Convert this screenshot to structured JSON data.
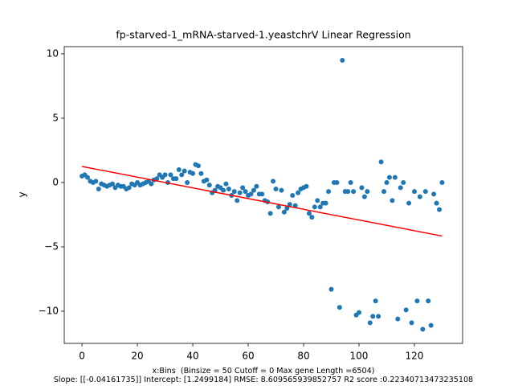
{
  "chart_data": {
    "type": "scatter",
    "title": "fp-starved-1_mRNA-starved-1.yeastchrV Linear Regression",
    "xlabel": [
      "x:Bins  (Binsize = 50 Cutoff = 0 Max gene Length =6504)",
      "Slope: [[-0.04161735]] Intercept: [1.2499184] RMSE: 8.609565939852757 R2 score :0.22340713473235108"
    ],
    "ylabel": "y",
    "xlim": [
      -6.4,
      137.4
    ],
    "ylim": [
      -12.5,
      10.56
    ],
    "xticks": [
      0,
      20,
      40,
      60,
      80,
      100,
      120
    ],
    "yticks": [
      {
        "value": -10,
        "label": "−10"
      },
      {
        "value": -5,
        "label": "−5"
      },
      0,
      5,
      10
    ],
    "series": [
      {
        "type": "scatter",
        "color": "#1f77b4",
        "x": [
          0,
          1,
          2,
          3,
          4,
          5,
          6,
          7,
          8,
          9,
          10,
          11,
          12,
          13,
          14,
          15,
          16,
          17,
          18,
          19,
          20,
          21,
          22,
          23,
          24,
          25,
          26,
          27,
          28,
          29,
          30,
          31,
          32,
          33,
          34,
          35,
          36,
          37,
          38,
          39,
          40,
          41,
          42,
          43,
          44,
          45,
          46,
          47,
          48,
          49,
          50,
          51,
          52,
          53,
          54,
          55,
          56,
          57,
          58,
          59,
          60,
          61,
          62,
          63,
          64,
          65,
          66,
          67,
          68,
          69,
          70,
          71,
          72,
          73,
          74,
          75,
          76,
          77,
          78,
          79,
          80,
          81,
          82,
          83,
          84,
          85,
          86,
          87,
          88,
          89,
          90,
          91,
          92,
          93,
          94,
          95,
          96,
          97,
          98,
          99,
          100,
          101,
          102,
          103,
          104,
          105,
          106,
          107,
          108,
          109,
          110,
          111,
          112,
          113,
          114,
          115,
          116,
          117,
          118,
          119,
          120,
          121,
          122,
          123,
          124,
          125,
          126,
          127,
          128,
          129,
          130
        ],
        "values": [
          0.5,
          0.6,
          0.4,
          0.1,
          0,
          0.1,
          -0.5,
          -0.1,
          -0.2,
          -0.3,
          -0.2,
          -0.1,
          -0.4,
          -0.2,
          -0.3,
          -0.3,
          -0.5,
          -0.4,
          -0.1,
          -0.2,
          0,
          -0.2,
          -0.1,
          0,
          0.1,
          -0.1,
          0.2,
          0.3,
          0.6,
          0.4,
          0.6,
          0,
          0.6,
          0.3,
          0.3,
          1.0,
          0.6,
          0.9,
          0,
          0.8,
          0.7,
          1.4,
          1.3,
          0.7,
          0.1,
          0.2,
          -0.2,
          -0.8,
          -0.6,
          -0.3,
          -0.4,
          -0.6,
          -0.1,
          -0.5,
          -1.0,
          -0.7,
          -1.4,
          -0.8,
          -0.4,
          -0.7,
          -1.0,
          -0.9,
          -0.6,
          -0.3,
          -0.9,
          -0.9,
          -1.4,
          -1.5,
          -2.4,
          0.1,
          -0.5,
          -1.9,
          -0.6,
          -2.3,
          -2.0,
          -1.7,
          -1.0,
          -1.8,
          -0.8,
          -0.5,
          -0.4,
          -0.3,
          -2.4,
          -2.7,
          -1.9,
          -1.4,
          -1.9,
          -1.6,
          -1.6,
          -0.7,
          -8.3,
          0,
          0,
          -9.7,
          9.5,
          -0.7,
          -0.7,
          0,
          -0.7,
          -10.3,
          -10.1,
          -0.4,
          -1.1,
          -0.7,
          -10.9,
          -10.4,
          -9.2,
          -10.4,
          1.6,
          -0.7,
          0,
          0.4,
          -1.4,
          0.4,
          -10.6,
          -0.4,
          0,
          -9.9,
          -1.6,
          -10.9,
          -0.7,
          -9.2,
          -1.1,
          -11.4,
          -0.7,
          -9.2,
          -11.1,
          -0.9,
          -1.6,
          -2.1,
          0
        ]
      },
      {
        "type": "line",
        "color": "#ff0000",
        "x": [
          0,
          130
        ],
        "values": [
          1.2499,
          -4.1603
        ]
      }
    ]
  }
}
